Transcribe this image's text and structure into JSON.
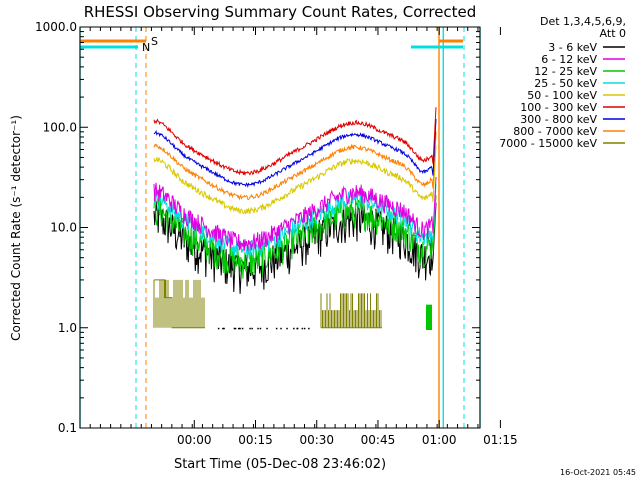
{
  "chart_data": {
    "type": "line",
    "title": "RHESSI Observing Summary Count Rates, Corrected",
    "xlabel": "Start Time (05-Dec-08 23:46:02)",
    "ylabel": "Corrected Count Rate (s⁻¹ detector⁻¹)",
    "y_scale": "log",
    "ylim": [
      0.1,
      1000
    ],
    "xlim_minutes": [
      -14,
      84
    ],
    "y_ticks": [
      {
        "value": 0.1,
        "label": "0.1"
      },
      {
        "value": 1,
        "label": "1.0"
      },
      {
        "value": 10,
        "label": "10.0"
      },
      {
        "value": 100,
        "label": "100.0"
      },
      {
        "value": 1000,
        "label": "1000.0"
      }
    ],
    "x_ticks": [
      {
        "value": 14,
        "label": "00:00"
      },
      {
        "value": 29,
        "label": "00:15"
      },
      {
        "value": 44,
        "label": "00:30"
      },
      {
        "value": 59,
        "label": "00:45"
      },
      {
        "value": 74,
        "label": "01:00"
      },
      {
        "value": 89,
        "label": "01:15"
      }
    ],
    "legend_header": [
      "Det 1,3,4,5,6,9,",
      "Att 0"
    ],
    "legend_position": "right",
    "series": [
      {
        "name": "3 - 6 keV",
        "color": "#000000",
        "level": 8.0
      },
      {
        "name": "6 - 12 keV",
        "color": "#e000e0",
        "level": 14.5
      },
      {
        "name": "12 - 25 keV",
        "color": "#00c800",
        "level": 9.5
      },
      {
        "name": "25 - 50 keV",
        "color": "#00e0e0",
        "level": 12.5
      },
      {
        "name": "50 - 100 keV",
        "color": "#d8c800",
        "level": 30
      },
      {
        "name": "100 - 300 keV",
        "color": "#e00000",
        "level": 72
      },
      {
        "name": "300 - 800 keV",
        "color": "#0000e0",
        "level": 55
      },
      {
        "name": "800 - 7000 keV",
        "color": "#ff8000",
        "level": 41
      },
      {
        "name": "7000 - 15000 keV",
        "color": "#808000",
        "level": 1.3
      }
    ],
    "flags": [
      {
        "label": "S",
        "color": "#ff8000"
      },
      {
        "label": "N",
        "color": "#00e0e0"
      }
    ],
    "footer_date": "16-Oct-2021 05:45"
  }
}
